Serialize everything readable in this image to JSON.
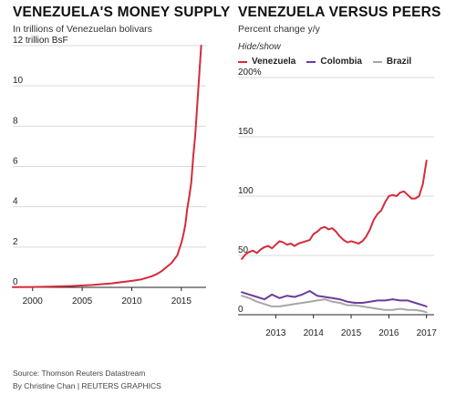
{
  "left": {
    "title": "VENEZUELA'S MONEY SUPPLY",
    "subtitle": "In trillions of Venezuelan bolivars"
  },
  "right": {
    "title": "VENEZUELA VERSUS PEERS",
    "subtitle": "Percent change y/y",
    "hide_show": "Hide/show"
  },
  "footer": {
    "source": "Source: Thomson Reuters Datastream",
    "credit": "By Christine Chan | REUTERS GRAPHICS"
  },
  "colors": {
    "venezuela": "#d62b3a",
    "colombia": "#6a3d9a",
    "brazil": "#a8a8a8",
    "grid": "#d9d9d9",
    "axis": "#222222"
  },
  "chart_data": [
    {
      "type": "line",
      "title": "VENEZUELA'S MONEY SUPPLY",
      "subtitle": "In trillions of Venezuelan bolivars",
      "ylim": [
        0,
        12
      ],
      "xlim": [
        1998,
        2017.5
      ],
      "x_ticks": [
        2000,
        2005,
        2010,
        2015
      ],
      "x_tick_labels": [
        "2000",
        "2005",
        "2010",
        "2015"
      ],
      "y_ticks": [
        0,
        2,
        4,
        6,
        8,
        10,
        12
      ],
      "y_tick_labels": [
        "0",
        "2",
        "4",
        "6",
        "8",
        "10",
        "12 trillion BsF"
      ],
      "grid": true,
      "series": [
        {
          "name": "Venezuela",
          "color": "#d62b3a",
          "x": [
            1998,
            2000,
            2002,
            2004,
            2006,
            2008,
            2010,
            2011,
            2012,
            2012.5,
            2013,
            2013.5,
            2014,
            2014.3,
            2014.6,
            2014.8,
            2015,
            2015.2,
            2015.4,
            2015.6,
            2015.8,
            2016,
            2016.2,
            2016.4,
            2016.6,
            2016.8,
            2017
          ],
          "y": [
            0.01,
            0.02,
            0.04,
            0.07,
            0.12,
            0.2,
            0.32,
            0.4,
            0.55,
            0.65,
            0.8,
            1.0,
            1.2,
            1.4,
            1.6,
            1.9,
            2.2,
            2.6,
            3.1,
            3.9,
            4.5,
            5.2,
            6.5,
            7.5,
            9.0,
            10.5,
            12.0
          ]
        }
      ]
    },
    {
      "type": "line",
      "title": "VENEZUELA VERSUS PEERS",
      "subtitle": "Percent change y/y",
      "ylim": [
        0,
        200
      ],
      "xlim": [
        2012,
        2017.2
      ],
      "x_ticks": [
        2013,
        2014,
        2015,
        2016,
        2017
      ],
      "x_tick_labels": [
        "2013",
        "2014",
        "2015",
        "2016",
        "2017"
      ],
      "y_ticks": [
        0,
        50,
        100,
        150,
        200
      ],
      "y_tick_labels": [
        "0",
        "50",
        "100",
        "150",
        "200%"
      ],
      "grid": true,
      "legend": "top-left",
      "series": [
        {
          "name": "Venezuela",
          "color": "#d62b3a",
          "x": [
            2012.1,
            2012.2,
            2012.3,
            2012.4,
            2012.5,
            2012.6,
            2012.7,
            2012.8,
            2012.9,
            2013.0,
            2013.1,
            2013.2,
            2013.3,
            2013.4,
            2013.5,
            2013.6,
            2013.7,
            2013.8,
            2013.9,
            2014.0,
            2014.1,
            2014.2,
            2014.3,
            2014.4,
            2014.5,
            2014.6,
            2014.7,
            2014.8,
            2014.9,
            2015.0,
            2015.1,
            2015.2,
            2015.3,
            2015.4,
            2015.5,
            2015.6,
            2015.7,
            2015.8,
            2015.9,
            2016.0,
            2016.1,
            2016.2,
            2016.3,
            2016.4,
            2016.5,
            2016.6,
            2016.7,
            2016.8,
            2016.9,
            2017.0
          ],
          "y": [
            47,
            51,
            53,
            54,
            52,
            55,
            57,
            58,
            56,
            59,
            62,
            61,
            59,
            60,
            58,
            60,
            61,
            62,
            63,
            68,
            70,
            73,
            74,
            72,
            73,
            70,
            66,
            63,
            61,
            62,
            61,
            60,
            62,
            66,
            72,
            80,
            85,
            88,
            95,
            100,
            101,
            100,
            103,
            104,
            101,
            98,
            98,
            100,
            110,
            130
          ]
        },
        {
          "name": "Colombia",
          "color": "#6a3d9a",
          "x": [
            2012.1,
            2012.3,
            2012.5,
            2012.7,
            2012.9,
            2013.1,
            2013.3,
            2013.5,
            2013.7,
            2013.9,
            2014.1,
            2014.3,
            2014.5,
            2014.7,
            2014.9,
            2015.1,
            2015.3,
            2015.5,
            2015.7,
            2015.9,
            2016.1,
            2016.3,
            2016.5,
            2016.7,
            2016.9,
            2017.0
          ],
          "y": [
            19,
            17,
            15,
            13,
            17,
            14,
            16,
            15,
            17,
            20,
            16,
            15,
            14,
            13,
            11,
            10,
            10,
            11,
            12,
            12,
            13,
            12,
            12,
            10,
            8,
            7
          ]
        },
        {
          "name": "Brazil",
          "color": "#a8a8a8",
          "x": [
            2012.1,
            2012.3,
            2012.5,
            2012.7,
            2012.9,
            2013.1,
            2013.3,
            2013.5,
            2013.7,
            2013.9,
            2014.1,
            2014.3,
            2014.5,
            2014.7,
            2014.9,
            2015.1,
            2015.3,
            2015.5,
            2015.7,
            2015.9,
            2016.1,
            2016.3,
            2016.5,
            2016.7,
            2016.9,
            2017.0
          ],
          "y": [
            16,
            14,
            11,
            9,
            7,
            7,
            8,
            9,
            10,
            11,
            12,
            13,
            11,
            10,
            8,
            8,
            7,
            6,
            5,
            4,
            4,
            5,
            4,
            4,
            3,
            2
          ]
        }
      ]
    }
  ]
}
